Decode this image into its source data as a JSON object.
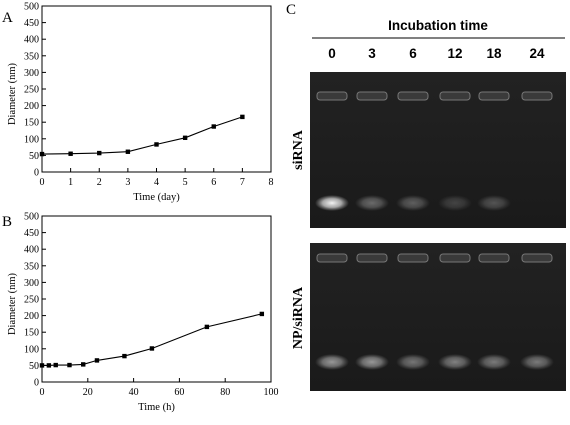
{
  "panels": {
    "A": "A",
    "B": "B",
    "C": "C"
  },
  "chart_data": [
    {
      "type": "line",
      "panel": "A",
      "xlabel": "Time (day)",
      "ylabel": "Diameter (nm)",
      "xlim": [
        0,
        8
      ],
      "ylim": [
        0,
        500
      ],
      "xticks": [
        0,
        1,
        2,
        3,
        4,
        5,
        6,
        7,
        8
      ],
      "yticks": [
        0,
        50,
        100,
        150,
        200,
        250,
        300,
        350,
        400,
        450,
        500
      ],
      "grid": false,
      "series": [
        {
          "x": [
            0,
            1,
            2,
            3,
            4,
            5,
            6,
            7
          ],
          "y": [
            54,
            55,
            57,
            61,
            83,
            103,
            137,
            166
          ]
        }
      ]
    },
    {
      "type": "line",
      "panel": "B",
      "xlabel": "Time (h)",
      "ylabel": "Diameter (nm)",
      "xlim": [
        0,
        100
      ],
      "ylim": [
        0,
        500
      ],
      "xticks": [
        0,
        20,
        40,
        60,
        80,
        100
      ],
      "yticks": [
        0,
        50,
        100,
        150,
        200,
        250,
        300,
        350,
        400,
        450,
        500
      ],
      "grid": false,
      "series": [
        {
          "x": [
            0,
            3,
            6,
            12,
            18,
            24,
            36,
            48,
            72,
            96
          ],
          "y": [
            50,
            50,
            51,
            51,
            53,
            65,
            78,
            101,
            166,
            205
          ]
        }
      ]
    }
  ],
  "gel": {
    "title": "Incubation time",
    "lanes": [
      "0",
      "3",
      "6",
      "12",
      "18",
      "24"
    ],
    "rows": [
      {
        "label": "siRNA",
        "band_intensity": [
          0.95,
          0.35,
          0.3,
          0.18,
          0.25,
          0.0
        ]
      },
      {
        "label": "NP/siRNA",
        "band_intensity": [
          0.55,
          0.55,
          0.4,
          0.45,
          0.42,
          0.42
        ]
      }
    ]
  }
}
